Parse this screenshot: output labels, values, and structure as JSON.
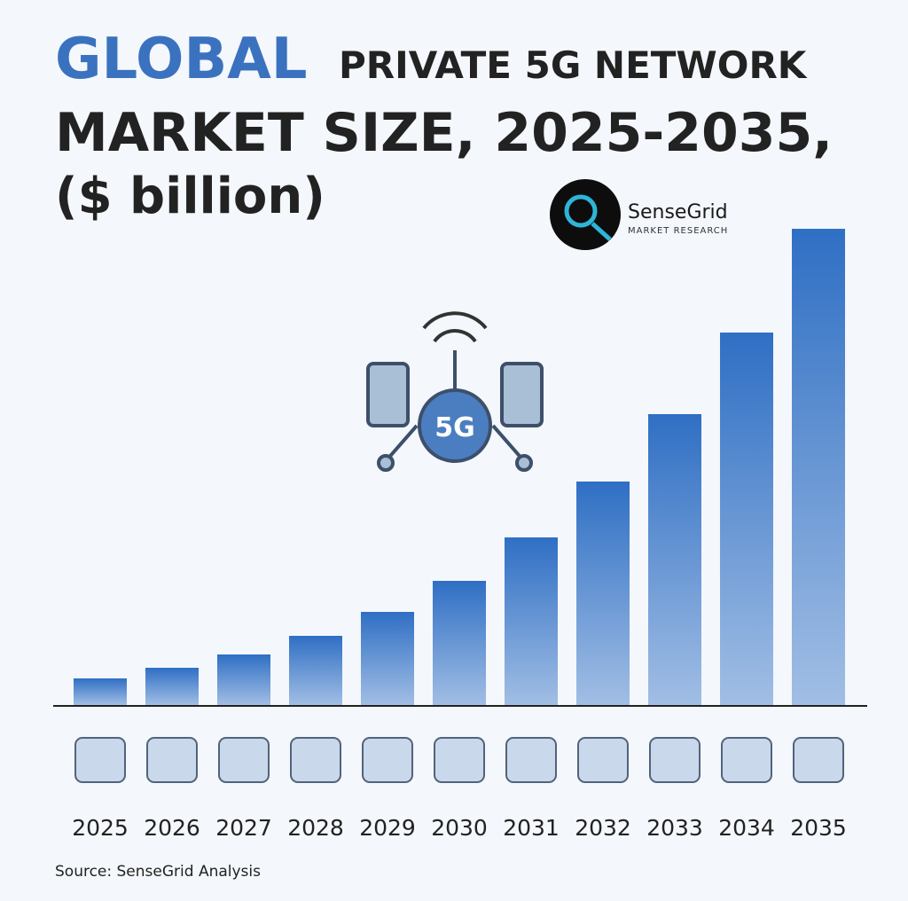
{
  "chart_data": {
    "type": "bar",
    "title": [
      "GLOBAL",
      "PRIVATE 5G NETWORK",
      "MARKET SIZE, 2025-2035,",
      "($ billion)"
    ],
    "categories": [
      "2025",
      "2026",
      "2027",
      "2028",
      "2029",
      "2030",
      "2031",
      "2032",
      "2033",
      "2034",
      "2035"
    ],
    "values": [
      3.0,
      4.2,
      5.7,
      7.8,
      10.5,
      14.0,
      18.9,
      25.2,
      32.8,
      42.0,
      53.7
    ],
    "color": "#2f6fc4",
    "source": "Source: SenseGrid Analysis"
  },
  "logo": {
    "name": "SenseGrid",
    "tagline": "MARKET RESEARCH"
  },
  "badge": "5G"
}
